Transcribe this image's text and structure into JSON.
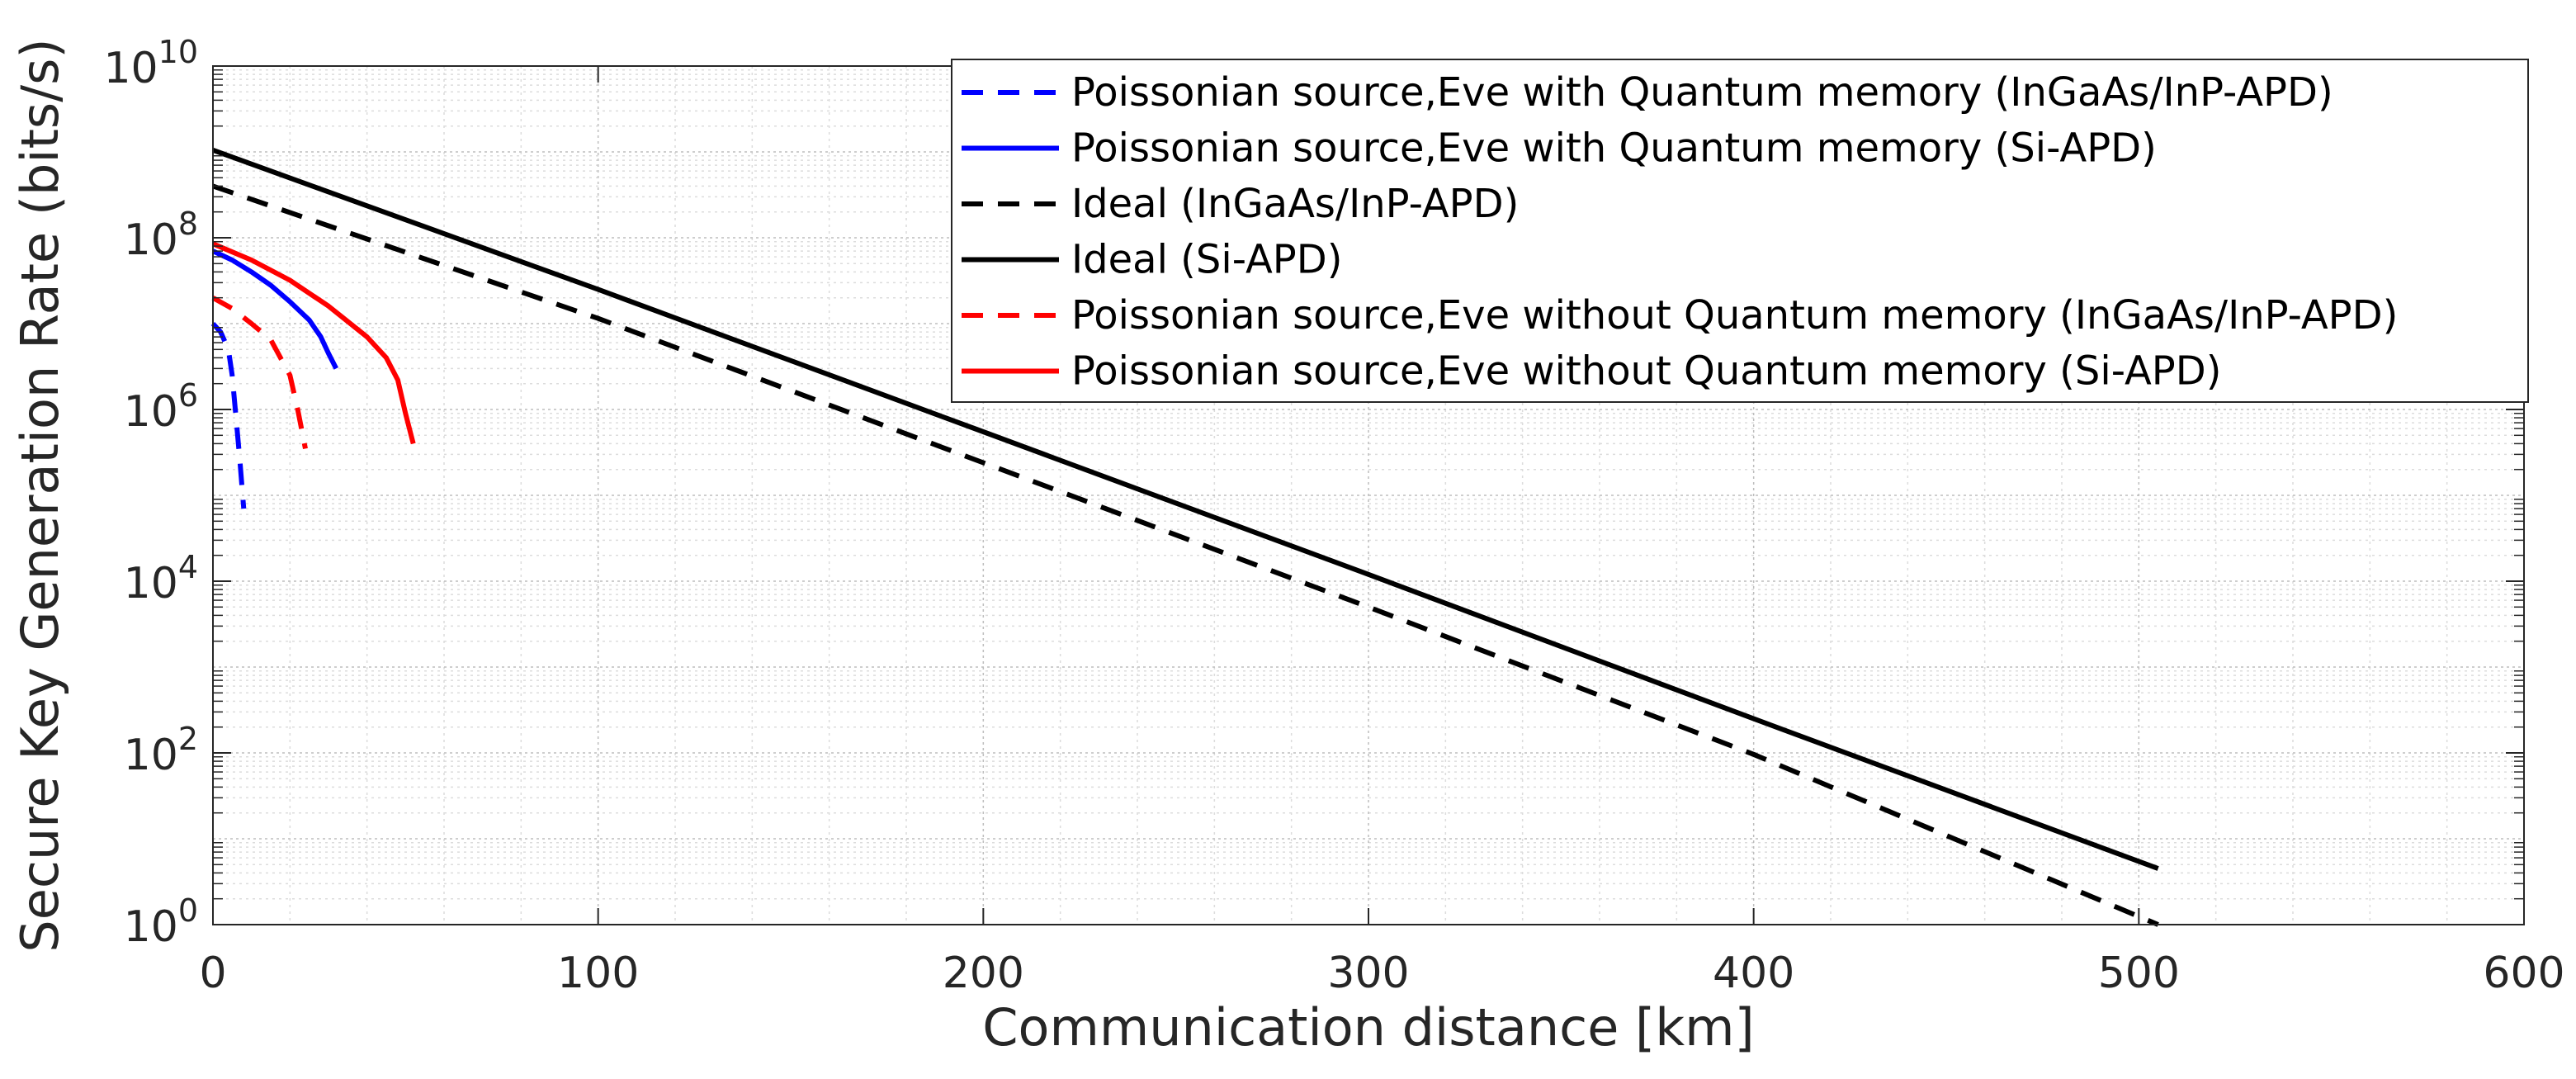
{
  "chart_data": {
    "type": "line",
    "xlabel": "Communication distance [km]",
    "ylabel": "Secure Key Generation Rate (bits/s)",
    "xlim": [
      0,
      600
    ],
    "ylim": [
      1,
      10000000000
    ],
    "yscale": "log",
    "grid": true,
    "minor_grid": true,
    "legend_position": "top-right",
    "x_ticks": [
      {
        "value": 0,
        "label": "0"
      },
      {
        "value": 100,
        "label": "100"
      },
      {
        "value": 200,
        "label": "200"
      },
      {
        "value": 300,
        "label": "300"
      },
      {
        "value": 400,
        "label": "400"
      },
      {
        "value": 500,
        "label": "500"
      },
      {
        "value": 600,
        "label": "600"
      }
    ],
    "y_ticks": [
      {
        "value": 1,
        "base": "10",
        "exp": "0"
      },
      {
        "value": 100,
        "base": "10",
        "exp": "2"
      },
      {
        "value": 10000,
        "base": "10",
        "exp": "4"
      },
      {
        "value": 1000000,
        "base": "10",
        "exp": "6"
      },
      {
        "value": 100000000,
        "base": "10",
        "exp": "8"
      },
      {
        "value": 10000000000,
        "base": "10",
        "exp": "10"
      }
    ],
    "series": [
      {
        "name": "Poissonian source,Eve with Quantum memory (InGaAs/InP-APD)",
        "color": "#0000ff",
        "dashed": true,
        "x": [
          0,
          2,
          4,
          5,
          6,
          7,
          8
        ],
        "y": [
          10000000,
          8000000,
          5000000,
          2500000,
          800000,
          250000,
          70000
        ]
      },
      {
        "name": "Poissonian source,Eve with Quantum memory (Si-APD)",
        "color": "#0000ff",
        "dashed": false,
        "x": [
          0,
          5,
          10,
          15,
          20,
          25,
          28,
          30,
          32
        ],
        "y": [
          70000000,
          55000000,
          40000000,
          28000000,
          18000000,
          11000000,
          7000000,
          4500000,
          3000000
        ]
      },
      {
        "name": "Ideal (InGaAs/InP-APD)",
        "color": "#000000",
        "dashed": true,
        "x": [
          0,
          100,
          200,
          300,
          400,
          505
        ],
        "y": [
          400000000,
          11500000,
          240000,
          5000,
          96,
          1
        ]
      },
      {
        "name": "Ideal (Si-APD)",
        "color": "#000000",
        "dashed": false,
        "x": [
          0,
          100,
          200,
          300,
          400,
          505
        ],
        "y": [
          1050000000,
          25000000,
          550000,
          12000,
          250,
          4.5
        ]
      },
      {
        "name": "Poissonian source,Eve without Quantum memory (InGaAs/InP-APD)",
        "color": "#ff0000",
        "dashed": true,
        "x": [
          0,
          5,
          10,
          15,
          20,
          22,
          24
        ],
        "y": [
          20000000,
          15000000,
          10000000,
          6500000,
          2500000,
          1000000,
          350000
        ]
      },
      {
        "name": "Poissonian source,Eve without Quantum memory (Si-APD)",
        "color": "#ff0000",
        "dashed": false,
        "x": [
          0,
          10,
          20,
          30,
          40,
          45,
          48,
          50,
          52
        ],
        "y": [
          85000000,
          55000000,
          32000000,
          16000000,
          7000000,
          4000000,
          2200000,
          900000,
          400000
        ]
      }
    ]
  }
}
